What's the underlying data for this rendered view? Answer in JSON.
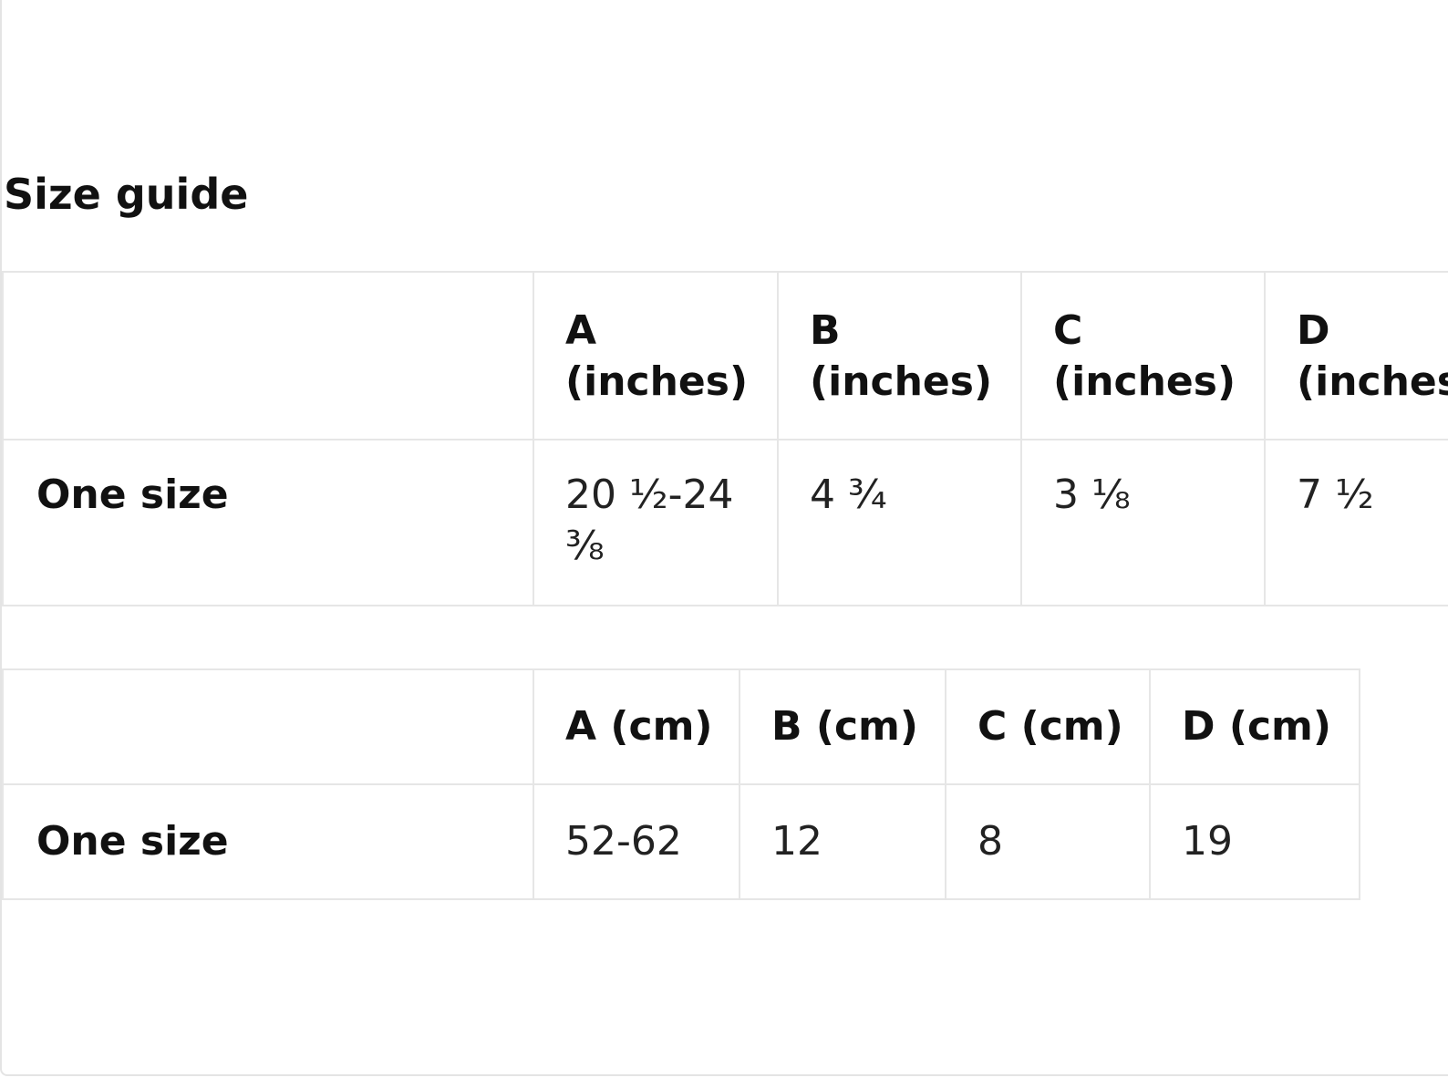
{
  "title": "Size guide",
  "inches_table": {
    "headers": [
      {
        "line1": "A",
        "line2": "(inches)"
      },
      {
        "line1": "B",
        "line2": "(inches)"
      },
      {
        "line1": "C",
        "line2": "(inches)"
      },
      {
        "line1": "D",
        "line2": "(inches)"
      }
    ],
    "rows": [
      {
        "label": "One size",
        "values": [
          "20 ½-24 ⅜",
          "4 ¾",
          "3 ⅛",
          "7 ½"
        ]
      }
    ]
  },
  "cm_table": {
    "headers": [
      "A (cm)",
      "B (cm)",
      "C (cm)",
      "D (cm)"
    ],
    "rows": [
      {
        "label": "One size",
        "values": [
          "52-62",
          "12",
          "8",
          "19"
        ]
      }
    ]
  }
}
